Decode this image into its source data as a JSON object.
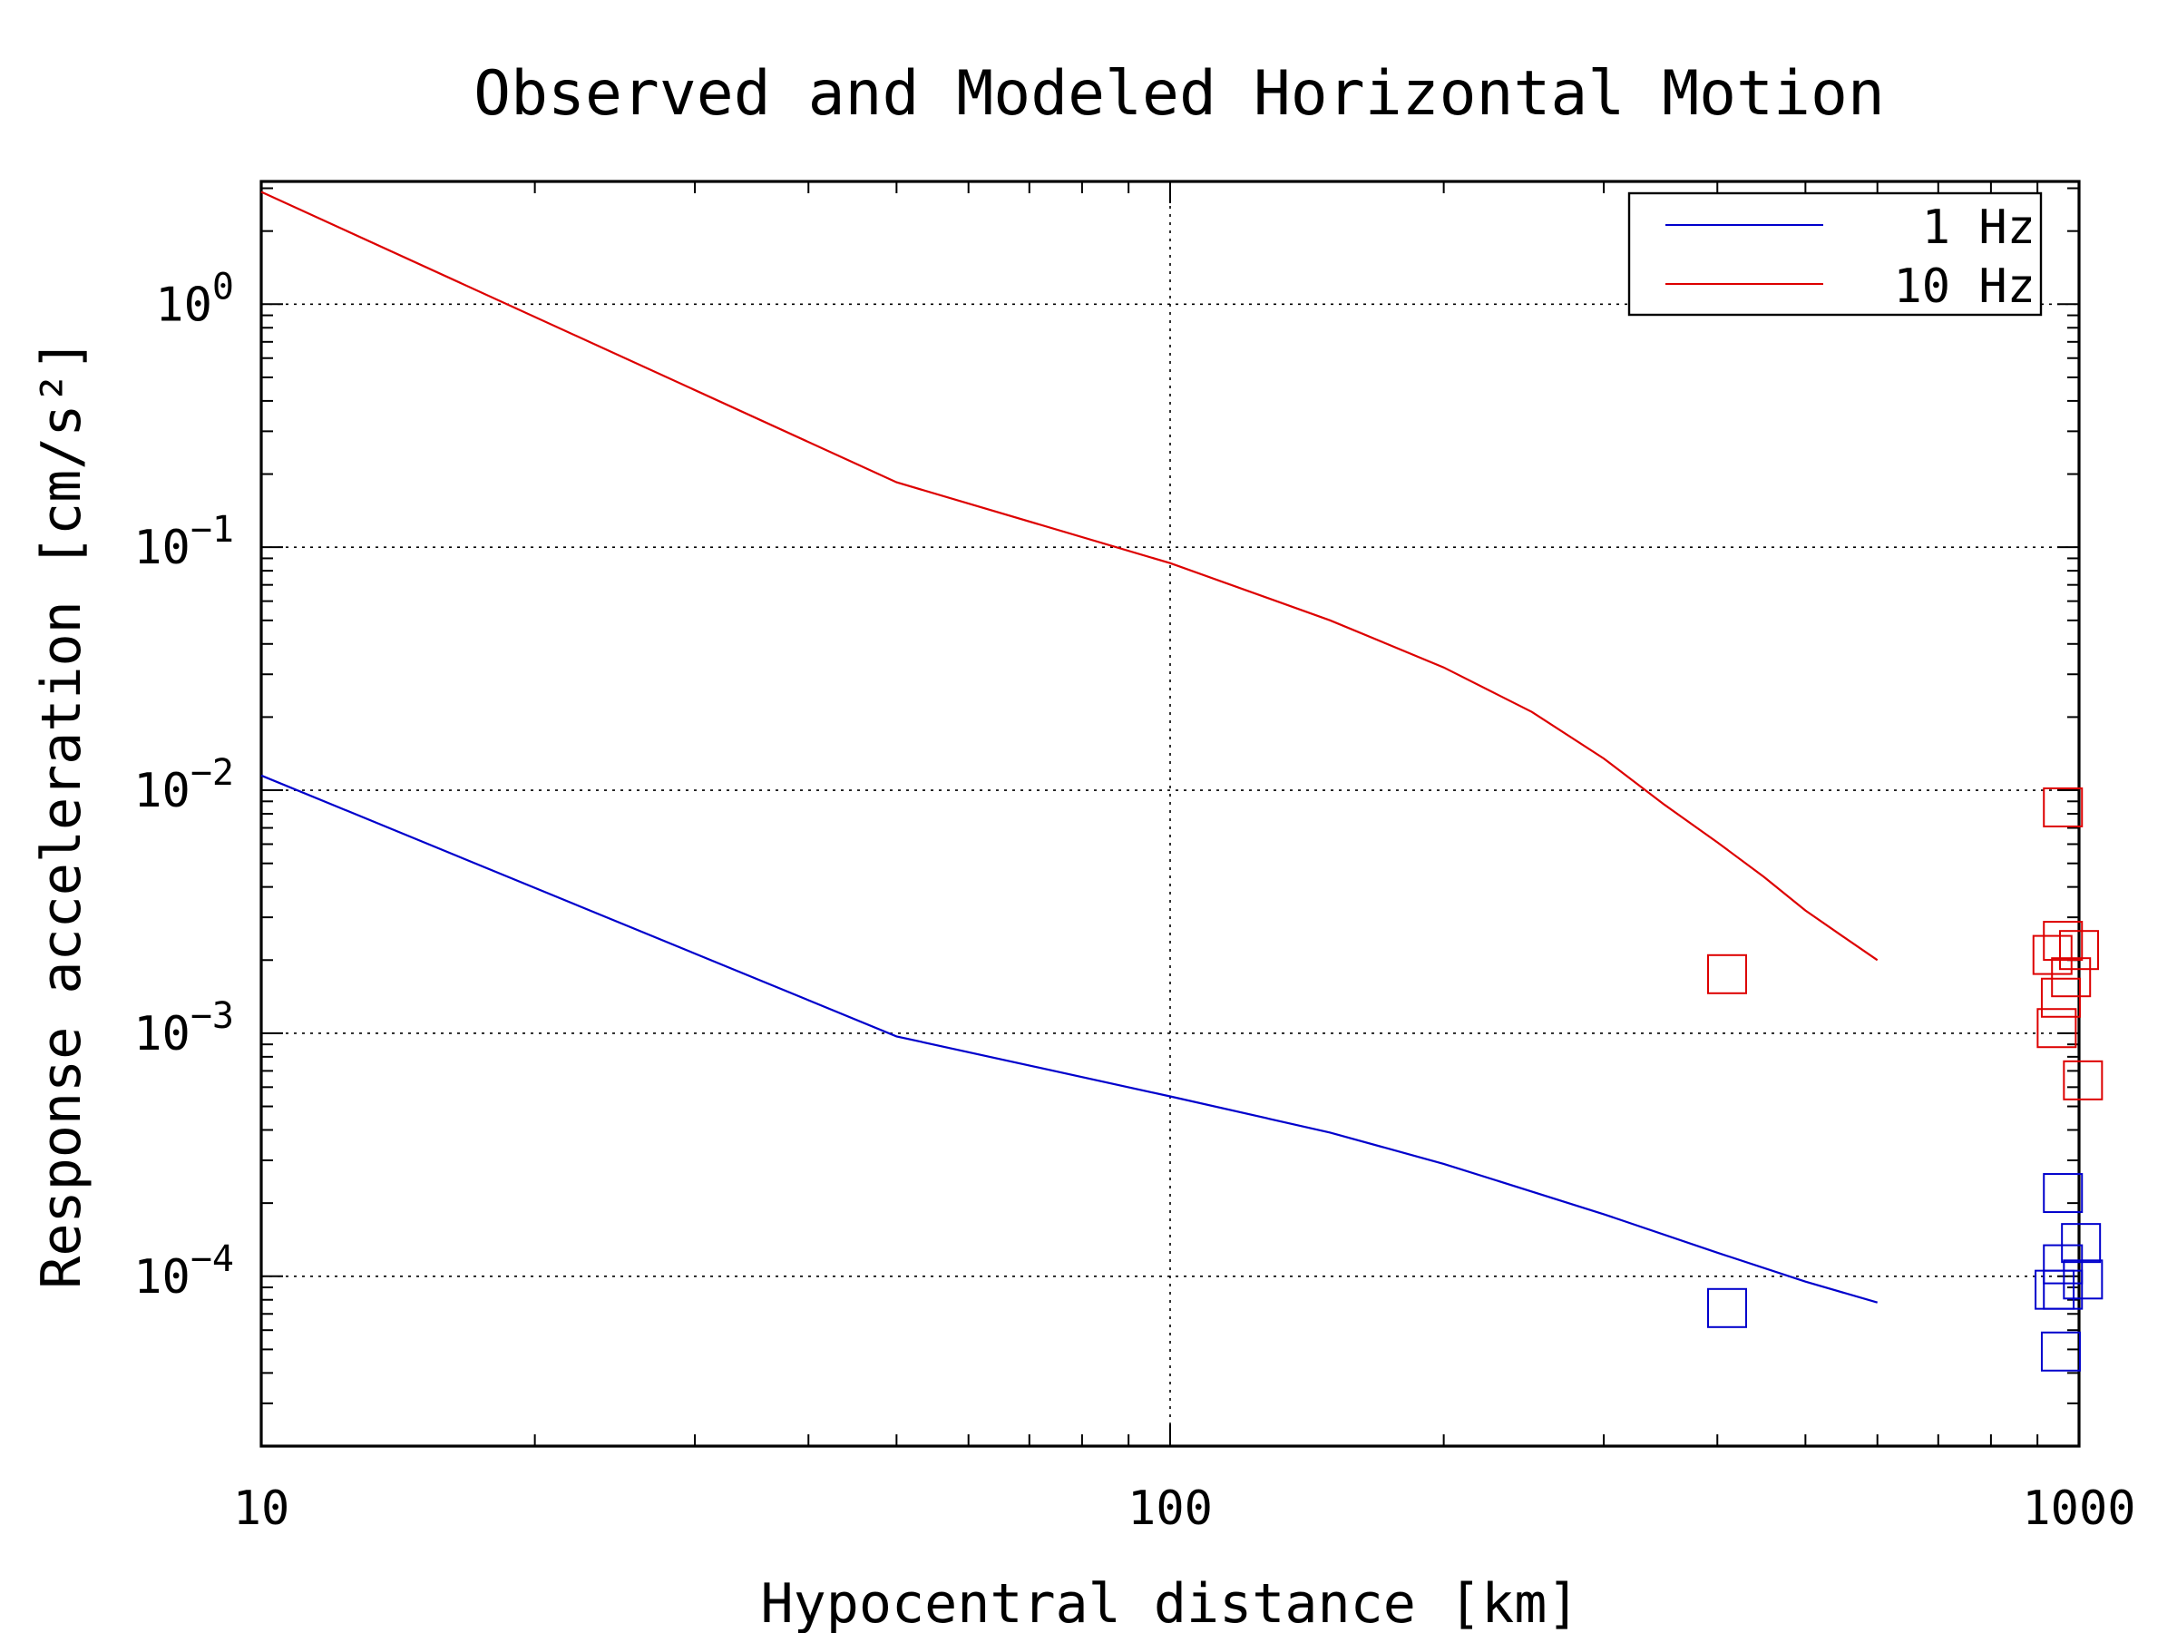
{
  "chart_data": {
    "type": "line",
    "title": "Observed and Modeled Horizontal Motion",
    "xlabel": "Hypocentral distance [km]",
    "ylabel": "Response acceleration [cm/s²]",
    "x_scale": "log",
    "y_scale": "log",
    "xlim": [
      10,
      1000
    ],
    "ylim": [
      2e-05,
      3.2
    ],
    "x_ticks": [
      {
        "value": 10,
        "label": "10"
      },
      {
        "value": 100,
        "label": "100"
      },
      {
        "value": 1000,
        "label": "1000"
      }
    ],
    "y_ticks": [
      {
        "value": 1,
        "mantissa": "10",
        "exponent": "0"
      },
      {
        "value": 0.1,
        "mantissa": "10",
        "exponent": "−1"
      },
      {
        "value": 0.01,
        "mantissa": "10",
        "exponent": "−2"
      },
      {
        "value": 0.001,
        "mantissa": "10",
        "exponent": "−3"
      },
      {
        "value": 0.0001,
        "mantissa": "10",
        "exponent": "−4"
      }
    ],
    "grid": true,
    "legend_position": "top-right",
    "series": [
      {
        "name": "1 Hz",
        "color": "#0000cc",
        "x": [
          10,
          50,
          100,
          150,
          200,
          300,
          400,
          500,
          600
        ],
        "y": [
          0.0115,
          0.00097,
          0.00055,
          0.00039,
          0.00029,
          0.00018,
          0.000125,
          9.5e-05,
          7.8e-05
        ]
      },
      {
        "name": "10 Hz",
        "color": "#dd0000",
        "x": [
          10,
          50,
          100,
          150,
          200,
          250,
          300,
          350,
          400,
          450,
          500,
          550,
          600
        ],
        "y": [
          2.9,
          0.185,
          0.086,
          0.05,
          0.032,
          0.021,
          0.0135,
          0.0087,
          0.0061,
          0.0044,
          0.0032,
          0.0025,
          0.002
        ]
      }
    ],
    "observations": [
      {
        "series": "10 Hz",
        "color": "#dd0000",
        "points": [
          [
            410,
            0.00175
          ],
          [
            960,
            0.0085
          ],
          [
            960,
            0.0024
          ],
          [
            935,
            0.0021
          ],
          [
            1000,
            0.0022
          ],
          [
            980,
            0.0017
          ],
          [
            955,
            0.0014
          ],
          [
            945,
            0.00105
          ],
          [
            1010,
            0.00064
          ]
        ]
      },
      {
        "series": "1 Hz",
        "color": "#0000cc",
        "points": [
          [
            410,
            7.4e-05
          ],
          [
            960,
            0.00022
          ],
          [
            960,
            0.000112
          ],
          [
            1005,
            0.000137
          ],
          [
            940,
            8.8e-05
          ],
          [
            960,
            8.8e-05
          ],
          [
            1010,
            9.7e-05
          ],
          [
            955,
            4.9e-05
          ]
        ]
      }
    ]
  }
}
